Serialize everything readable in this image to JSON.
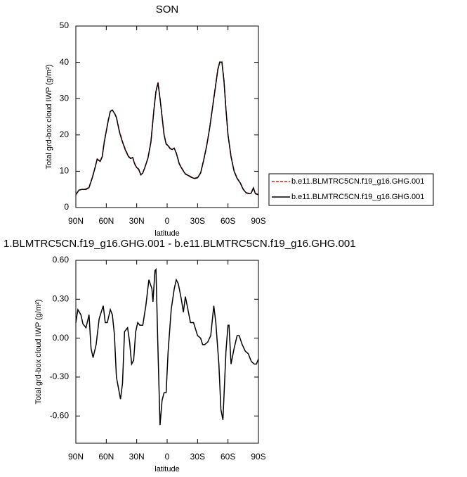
{
  "chart_data": [
    {
      "type": "line",
      "title": "SON",
      "xlabel": "latitude",
      "ylabel": "Total grd-box cloud IWP (g/m²)",
      "x": [
        90,
        87,
        84,
        80,
        77,
        74,
        71,
        69,
        66,
        64,
        62,
        60,
        58,
        56,
        54,
        52,
        50,
        47,
        44,
        41,
        38,
        36,
        34,
        32,
        30,
        28,
        26,
        24,
        22,
        19,
        16,
        13,
        11,
        9,
        7,
        5,
        3,
        1,
        -1,
        -3,
        -5,
        -7,
        -9,
        -12,
        -15,
        -18,
        -21,
        -24,
        -27,
        -30,
        -33,
        -36,
        -39,
        -42,
        -45,
        -48,
        -50,
        -52,
        -54,
        -56,
        -58,
        -60,
        -63,
        -66,
        -69,
        -72,
        -75,
        -78,
        -81,
        -83,
        -85,
        -87,
        -90
      ],
      "series": [
        {
          "name": "b.e11.BLMTRC5CN.f19_g16.GHG.001",
          "color": "#e8120c",
          "dash": true,
          "values": [
            3.6,
            4.8,
            5.0,
            5.1,
            5.6,
            8.1,
            11.1,
            13.4,
            12.8,
            14.1,
            18.2,
            21.1,
            24.2,
            26.6,
            26.9,
            26.1,
            24.9,
            21.0,
            18.2,
            15.9,
            14.1,
            13.6,
            13.9,
            12.1,
            11.1,
            10.6,
            9.1,
            9.6,
            11.1,
            13.6,
            18.1,
            27.1,
            32.2,
            34.5,
            30.1,
            25.1,
            20.1,
            17.6,
            17.1,
            16.3,
            16.1,
            16.4,
            15.1,
            12.1,
            10.6,
            9.3,
            8.9,
            8.4,
            8.1,
            8.3,
            9.6,
            13.1,
            17.1,
            22.1,
            28.2,
            34.2,
            38.2,
            40.3,
            40.2,
            35.1,
            27.1,
            20.1,
            14.1,
            10.1,
            8.1,
            6.9,
            5.1,
            4.1,
            3.9,
            4.1,
            5.5,
            3.9,
            3.6
          ]
        },
        {
          "name": "b.e11.BLMTRC5CN.f19_g16.GHG.001",
          "color": "#000000",
          "dash": false,
          "values": [
            3.5,
            4.8,
            5.0,
            5.0,
            5.5,
            8.0,
            11.0,
            13.3,
            12.7,
            14.0,
            18.0,
            21.0,
            24.0,
            26.5,
            26.8,
            26.0,
            24.8,
            20.8,
            18.0,
            15.7,
            14.0,
            13.5,
            13.8,
            12.0,
            11.0,
            10.5,
            9.0,
            9.5,
            11.0,
            13.5,
            18.0,
            27.0,
            32.0,
            34.3,
            30.0,
            25.0,
            20.0,
            17.5,
            17.0,
            16.2,
            16.0,
            16.3,
            15.0,
            12.0,
            10.5,
            9.2,
            8.8,
            8.3,
            8.0,
            8.2,
            9.5,
            13.0,
            17.0,
            22.0,
            28.0,
            34.0,
            38.0,
            40.1,
            40.0,
            35.0,
            27.0,
            20.0,
            14.0,
            10.0,
            8.0,
            6.8,
            5.0,
            4.0,
            3.8,
            4.0,
            5.4,
            3.8,
            3.5
          ]
        }
      ],
      "xlim": [
        90,
        -90
      ],
      "xticks": [
        {
          "value": 90,
          "label": "90N"
        },
        {
          "value": 60,
          "label": "60N"
        },
        {
          "value": 30,
          "label": "30N"
        },
        0,
        {
          "value": -30,
          "label": "30S"
        },
        {
          "value": -60,
          "label": "60S"
        },
        {
          "value": -90,
          "label": "90S"
        }
      ],
      "ylim": [
        0,
        50
      ],
      "yticks": [
        0,
        10,
        20,
        30,
        40,
        50
      ],
      "legend": "right"
    },
    {
      "type": "line",
      "title": "1.BLMTRC5CN.f19_g16.GHG.001 - b.e11.BLMTRC5CN.f19_g16.GHG.001",
      "xlabel": "latitude",
      "ylabel": "Total grd-box cloud IWP (g/m²)",
      "x": [
        90,
        88,
        85,
        83,
        80,
        77,
        75,
        73,
        70,
        67,
        63,
        61,
        59,
        56,
        54,
        52,
        50,
        46,
        44,
        42,
        39,
        37,
        35,
        33,
        31,
        29,
        27,
        24,
        21,
        18,
        15,
        14,
        12,
        11,
        9,
        7,
        5,
        3,
        1,
        -1,
        -4,
        -7,
        -9,
        -11,
        -14,
        -16,
        -18,
        -21,
        -23,
        -26,
        -30,
        -33,
        -35,
        -37,
        -40,
        -43,
        -46,
        -48,
        -51,
        -53,
        -55,
        -58,
        -60,
        -61,
        -63,
        -66,
        -69,
        -71,
        -74,
        -77,
        -80,
        -83,
        -86,
        -88,
        -90
      ],
      "series": [
        {
          "color": "#000000",
          "dash": false,
          "values": [
            0.12,
            0.22,
            0.18,
            0.11,
            0.08,
            0.18,
            -0.08,
            -0.15,
            -0.05,
            0.15,
            0.25,
            0.12,
            0.12,
            0.22,
            0.18,
            0.03,
            -0.3,
            -0.47,
            -0.35,
            0.05,
            0.08,
            -0.03,
            -0.2,
            -0.17,
            0.05,
            0.12,
            0.1,
            0.1,
            0.25,
            0.45,
            0.38,
            0.28,
            0.52,
            0.53,
            -0.1,
            -0.67,
            -0.48,
            -0.42,
            -0.42,
            -0.1,
            0.22,
            0.38,
            0.45,
            0.42,
            0.3,
            0.2,
            0.32,
            0.2,
            0.12,
            0.12,
            0.02,
            0.0,
            -0.05,
            -0.05,
            -0.03,
            0.02,
            0.25,
            0.12,
            -0.2,
            -0.55,
            -0.63,
            -0.1,
            0.1,
            0.1,
            -0.2,
            -0.08,
            0.02,
            0.02,
            -0.05,
            -0.1,
            -0.12,
            -0.18,
            -0.2,
            -0.2,
            -0.16
          ]
        }
      ],
      "xlim": [
        90,
        -90
      ],
      "xticks": [
        {
          "value": 90,
          "label": "90N"
        },
        {
          "value": 60,
          "label": "60N"
        },
        {
          "value": 30,
          "label": "30N"
        },
        0,
        {
          "value": -30,
          "label": "30S"
        },
        {
          "value": -60,
          "label": "60S"
        },
        {
          "value": -90,
          "label": "90S"
        }
      ],
      "ylim": [
        -0.81,
        0.6
      ],
      "yticks": [
        {
          "value": -0.6,
          "label": "-0.60"
        },
        {
          "value": -0.3,
          "label": "-0.30"
        },
        {
          "value": 0,
          "label": "0.00"
        },
        {
          "value": 0.3,
          "label": "0.30"
        },
        {
          "value": 0.6,
          "label": "0.60"
        }
      ]
    }
  ]
}
